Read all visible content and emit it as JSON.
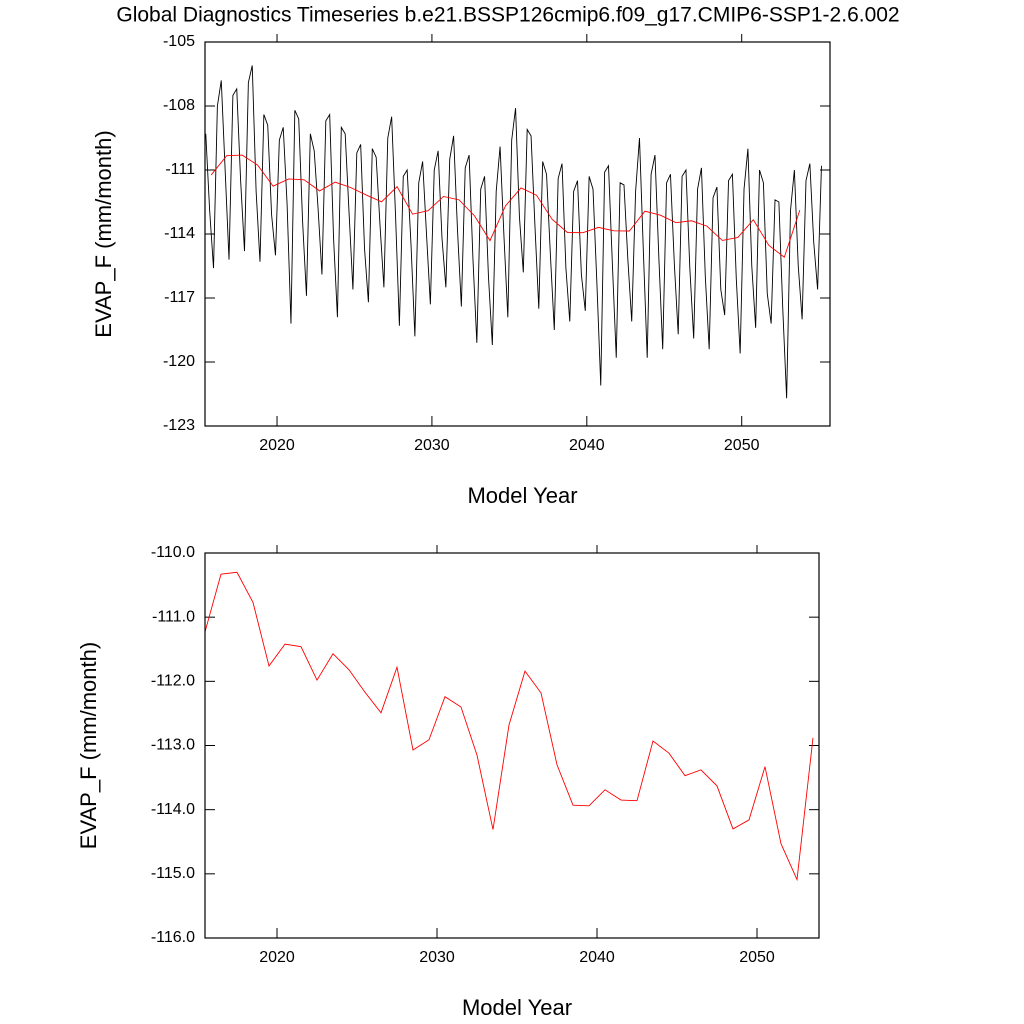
{
  "chart_data": [
    {
      "type": "line",
      "title": "Global Diagnostics Timeseries b.e21.BSSP126cmip6.f09_g17.CMIP6-SSP1-2.6.002",
      "xlabel": "Model Year",
      "ylabel": "EVAP_F (mm/month)",
      "xlim": [
        2015.35,
        2055.7
      ],
      "ylim": [
        -123,
        -105
      ],
      "xticks": [
        2020,
        2030,
        2040,
        2050
      ],
      "yticks": [
        -105,
        -108,
        -111,
        -114,
        -117,
        -120,
        -123
      ],
      "series": [
        {
          "color": "#000000",
          "x": [
            2015.4,
            2015.65,
            2015.9,
            2016.15,
            2016.4,
            2016.65,
            2016.9,
            2017.15,
            2017.4,
            2017.65,
            2017.9,
            2018.15,
            2018.4,
            2018.65,
            2018.9,
            2019.15,
            2019.4,
            2019.65,
            2019.9,
            2020.15,
            2020.4,
            2020.65,
            2020.9,
            2021.15,
            2021.4,
            2021.65,
            2021.9,
            2022.15,
            2022.4,
            2022.65,
            2022.9,
            2023.15,
            2023.4,
            2023.65,
            2023.9,
            2024.15,
            2024.4,
            2024.65,
            2024.9,
            2025.15,
            2025.4,
            2025.65,
            2025.9,
            2026.15,
            2026.4,
            2026.65,
            2026.9,
            2027.15,
            2027.4,
            2027.65,
            2027.9,
            2028.15,
            2028.4,
            2028.65,
            2028.9,
            2029.15,
            2029.4,
            2029.65,
            2029.9,
            2030.15,
            2030.4,
            2030.65,
            2030.9,
            2031.15,
            2031.4,
            2031.65,
            2031.9,
            2032.15,
            2032.4,
            2032.65,
            2032.9,
            2033.15,
            2033.4,
            2033.65,
            2033.9,
            2034.15,
            2034.4,
            2034.65,
            2034.9,
            2035.15,
            2035.4,
            2035.65,
            2035.9,
            2036.15,
            2036.4,
            2036.65,
            2036.9,
            2037.15,
            2037.4,
            2037.65,
            2037.9,
            2038.15,
            2038.4,
            2038.65,
            2038.9,
            2039.15,
            2039.4,
            2039.65,
            2039.9,
            2040.15,
            2040.4,
            2040.65,
            2040.9,
            2041.15,
            2041.4,
            2041.65,
            2041.9,
            2042.15,
            2042.4,
            2042.65,
            2042.9,
            2043.15,
            2043.4,
            2043.65,
            2043.9,
            2044.15,
            2044.4,
            2044.65,
            2044.9,
            2045.15,
            2045.4,
            2045.65,
            2045.9,
            2046.15,
            2046.4,
            2046.65,
            2046.9,
            2047.15,
            2047.4,
            2047.65,
            2047.9,
            2048.15,
            2048.4,
            2048.65,
            2048.9,
            2049.15,
            2049.4,
            2049.65,
            2049.9,
            2050.15,
            2050.4,
            2050.65,
            2050.9,
            2051.15,
            2051.4,
            2051.65,
            2051.9,
            2052.15,
            2052.4,
            2052.65,
            2052.9,
            2053.15,
            2053.4,
            2053.65,
            2053.9,
            2054.15,
            2054.4,
            2054.65,
            2054.9,
            2055.15
          ],
          "values": [
            -109.3,
            -112.9,
            -115.6,
            -108.0,
            -106.8,
            -111.0,
            -115.2,
            -107.5,
            -107.2,
            -111.5,
            -114.8,
            -106.9,
            -106.1,
            -112.0,
            -115.3,
            -108.4,
            -108.9,
            -113.1,
            -115.0,
            -109.6,
            -109.0,
            -112.6,
            -118.2,
            -108.2,
            -108.6,
            -113.4,
            -116.9,
            -109.3,
            -110.1,
            -112.8,
            -115.9,
            -108.7,
            -108.4,
            -114.2,
            -117.9,
            -109.0,
            -109.3,
            -113.0,
            -116.6,
            -110.2,
            -109.8,
            -114.7,
            -117.2,
            -110.0,
            -110.4,
            -113.6,
            -116.5,
            -109.5,
            -108.5,
            -113.1,
            -118.3,
            -111.3,
            -111.0,
            -114.5,
            -118.8,
            -111.6,
            -110.6,
            -114.0,
            -117.3,
            -111.0,
            -110.1,
            -114.2,
            -116.5,
            -110.5,
            -109.4,
            -113.8,
            -117.4,
            -110.9,
            -110.3,
            -115.2,
            -119.1,
            -111.9,
            -111.3,
            -116.0,
            -119.2,
            -112.0,
            -109.9,
            -114.1,
            -117.9,
            -109.6,
            -108.1,
            -113.2,
            -115.8,
            -109.1,
            -109.4,
            -113.6,
            -117.5,
            -110.6,
            -111.2,
            -115.0,
            -118.5,
            -111.4,
            -110.7,
            -115.6,
            -118.1,
            -112.0,
            -111.5,
            -115.9,
            -117.6,
            -111.3,
            -111.9,
            -116.3,
            -121.1,
            -111.1,
            -110.8,
            -115.4,
            -119.8,
            -111.6,
            -111.7,
            -115.2,
            -118.1,
            -112.0,
            -109.5,
            -114.8,
            -119.8,
            -111.2,
            -110.3,
            -115.1,
            -119.4,
            -111.6,
            -111.2,
            -115.4,
            -118.7,
            -111.3,
            -111.0,
            -115.6,
            -118.9,
            -111.9,
            -110.9,
            -116.0,
            -119.4,
            -112.3,
            -111.8,
            -116.6,
            -117.8,
            -111.5,
            -111.2,
            -116.1,
            -119.6,
            -111.9,
            -110.0,
            -115.5,
            -118.4,
            -111.0,
            -111.6,
            -116.8,
            -118.2,
            -112.4,
            -112.5,
            -117.5,
            -121.7,
            -112.9,
            -111.0,
            -115.5,
            -118.0,
            -111.5,
            -110.7,
            -114.4,
            -116.6,
            -110.8
          ]
        },
        {
          "color": "#ff0000",
          "x": [
            2015.75,
            2016.75,
            2017.75,
            2018.75,
            2019.75,
            2020.75,
            2021.75,
            2022.75,
            2023.75,
            2024.75,
            2025.75,
            2026.75,
            2027.75,
            2028.75,
            2029.75,
            2030.75,
            2031.75,
            2032.75,
            2033.75,
            2034.75,
            2035.75,
            2036.75,
            2037.75,
            2038.75,
            2039.75,
            2040.75,
            2041.75,
            2042.75,
            2043.75,
            2044.75,
            2045.75,
            2046.75,
            2047.75,
            2048.75,
            2049.75,
            2050.75,
            2051.75,
            2052.75,
            2053.75
          ],
          "values": [
            -111.23,
            -110.33,
            -110.3,
            -110.77,
            -111.76,
            -111.42,
            -111.46,
            -111.98,
            -111.57,
            -111.82,
            -112.17,
            -112.49,
            -111.78,
            -113.07,
            -112.91,
            -112.24,
            -112.4,
            -113.15,
            -114.31,
            -112.68,
            -111.84,
            -112.18,
            -113.3,
            -113.93,
            -113.94,
            -113.69,
            -113.85,
            -113.86,
            -112.93,
            -113.12,
            -113.47,
            -113.38,
            -113.63,
            -114.3,
            -114.16,
            -113.33,
            -114.53,
            -115.09,
            -112.88
          ]
        }
      ]
    },
    {
      "type": "line",
      "xlabel": "Model Year",
      "ylabel": "EVAP_F (mm/month)",
      "xlim": [
        2015.5,
        2053.875
      ],
      "ylim": [
        -116,
        -110
      ],
      "xticks": [
        2020,
        2030,
        2040,
        2050
      ],
      "yticks": [
        {
          "value": -110,
          "label": "-110.0"
        },
        {
          "value": -111,
          "label": "-111.0"
        },
        {
          "value": -112,
          "label": "-112.0"
        },
        {
          "value": -113,
          "label": "-113.0"
        },
        {
          "value": -114,
          "label": "-114.0"
        },
        {
          "value": -115,
          "label": "-115.0"
        },
        {
          "value": -116,
          "label": "-116.0"
        }
      ],
      "series": [
        {
          "color": "#ff0000",
          "x": [
            2015.5,
            2016.5,
            2017.5,
            2018.5,
            2019.5,
            2020.5,
            2021.5,
            2022.5,
            2023.5,
            2024.5,
            2025.5,
            2026.5,
            2027.5,
            2028.5,
            2029.5,
            2030.5,
            2031.5,
            2032.5,
            2033.5,
            2034.5,
            2035.5,
            2036.5,
            2037.5,
            2038.5,
            2039.5,
            2040.5,
            2041.5,
            2042.5,
            2043.5,
            2044.5,
            2045.5,
            2046.5,
            2047.5,
            2048.5,
            2049.5,
            2050.5,
            2051.5,
            2052.5,
            2053.5
          ],
          "values": [
            -111.23,
            -110.33,
            -110.3,
            -110.77,
            -111.76,
            -111.42,
            -111.46,
            -111.98,
            -111.57,
            -111.82,
            -112.17,
            -112.49,
            -111.78,
            -113.07,
            -112.91,
            -112.24,
            -112.4,
            -113.15,
            -114.31,
            -112.68,
            -111.84,
            -112.18,
            -113.3,
            -113.93,
            -113.94,
            -113.69,
            -113.85,
            -113.86,
            -112.93,
            -113.12,
            -113.47,
            -113.38,
            -113.63,
            -114.3,
            -114.16,
            -113.33,
            -114.53,
            -115.09,
            -112.88
          ]
        }
      ]
    }
  ]
}
